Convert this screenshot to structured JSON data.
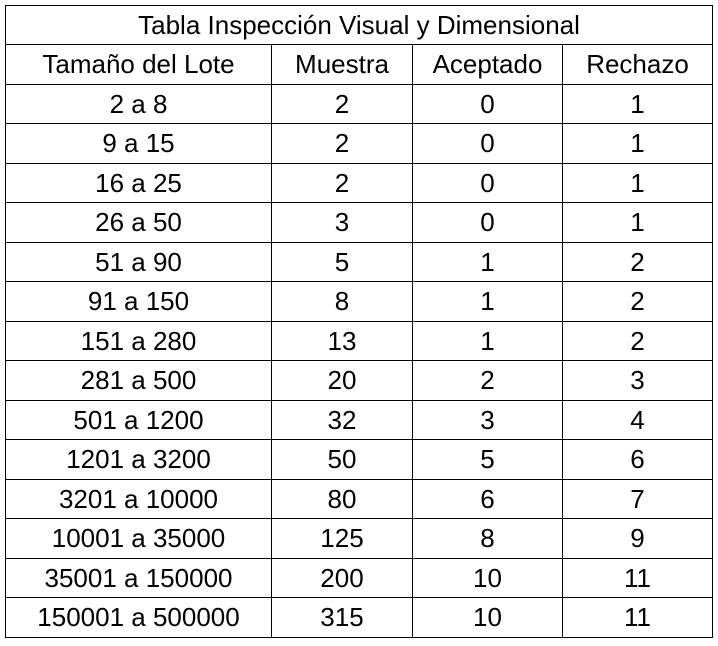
{
  "table": {
    "title": "Tabla Inspección Visual y Dimensional",
    "columns": [
      "Tamaño del Lote",
      "Muestra",
      "Aceptado",
      "Rechazo"
    ],
    "rows": [
      [
        "2 a 8",
        "2",
        "0",
        "1"
      ],
      [
        "9 a 15",
        "2",
        "0",
        "1"
      ],
      [
        "16 a 25",
        "2",
        "0",
        "1"
      ],
      [
        "26 a 50",
        "3",
        "0",
        "1"
      ],
      [
        "51 a 90",
        "5",
        "1",
        "2"
      ],
      [
        "91 a 150",
        "8",
        "1",
        "2"
      ],
      [
        "151 a 280",
        "13",
        "1",
        "2"
      ],
      [
        "281 a 500",
        "20",
        "2",
        "3"
      ],
      [
        "501 a 1200",
        "32",
        "3",
        "4"
      ],
      [
        "1201 a 3200",
        "50",
        "5",
        "6"
      ],
      [
        "3201 a 10000",
        "80",
        "6",
        "7"
      ],
      [
        "10001 a 35000",
        "125",
        "8",
        "9"
      ],
      [
        "35001 a 150000",
        "200",
        "10",
        "11"
      ],
      [
        "150001 a 500000",
        "315",
        "10",
        "11"
      ]
    ]
  }
}
